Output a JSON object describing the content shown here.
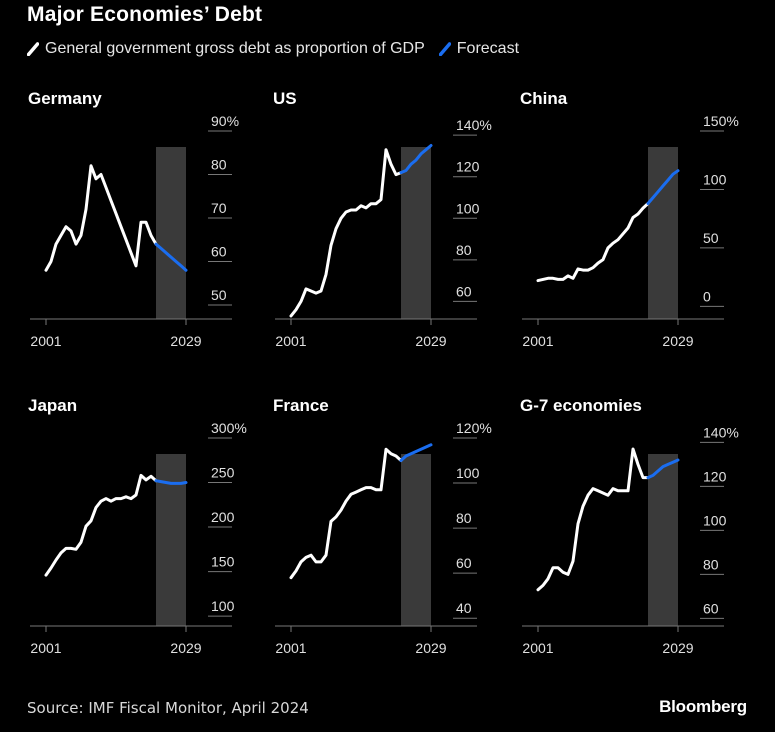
{
  "title": "Major Economies’ Debt",
  "legend": {
    "actual_label": "General government gross debt as proportion of GDP",
    "forecast_label": "Forecast"
  },
  "colors": {
    "actual": "#ffffff",
    "forecast": "#1a6df0",
    "forecast_band": "#3a3a3a",
    "grid": "#777777"
  },
  "source": "Source: IMF Fiscal Monitor, April 2024",
  "brand": "Bloomberg",
  "chart_data": [
    {
      "type": "line",
      "title": "Germany",
      "xlim": [
        2001,
        2029
      ],
      "ylim": [
        47,
        90
      ],
      "yticks": [
        50,
        60,
        70,
        80,
        90
      ],
      "ytick_labels": [
        "50",
        "60",
        "70",
        "80",
        "90%"
      ],
      "xtick_labels": [
        "2001",
        "2029"
      ],
      "forecast_start": 2023,
      "series": [
        {
          "x": [
            2001,
            2002,
            2003,
            2004,
            2005,
            2006,
            2007,
            2008,
            2009,
            2010,
            2011,
            2012,
            2013,
            2014,
            2015,
            2016,
            2017,
            2018,
            2019,
            2020,
            2021,
            2022,
            2023
          ],
          "values": [
            58,
            60,
            64,
            66,
            68,
            67,
            64,
            66,
            72,
            82,
            79,
            80,
            77,
            74,
            71,
            68,
            65,
            62,
            59,
            69,
            69,
            66,
            64
          ]
        },
        {
          "x": [
            2023,
            2024,
            2025,
            2026,
            2027,
            2028,
            2029
          ],
          "values": [
            64,
            63,
            62,
            61,
            60,
            59,
            58
          ]
        }
      ]
    },
    {
      "type": "line",
      "title": "US",
      "xlim": [
        2001,
        2029
      ],
      "ylim": [
        52,
        142
      ],
      "yticks": [
        60,
        80,
        100,
        120,
        140
      ],
      "ytick_labels": [
        "60",
        "80",
        "100",
        "120",
        "140%"
      ],
      "xtick_labels": [
        "2001",
        "2029"
      ],
      "forecast_start": 2023,
      "series": [
        {
          "x": [
            2001,
            2002,
            2003,
            2004,
            2005,
            2006,
            2007,
            2008,
            2009,
            2010,
            2011,
            2012,
            2013,
            2014,
            2015,
            2016,
            2017,
            2018,
            2019,
            2020,
            2021,
            2022,
            2023
          ],
          "values": [
            53,
            56,
            60,
            66,
            65,
            64,
            65,
            73,
            87,
            95,
            100,
            103,
            104,
            104,
            106,
            105,
            107,
            107,
            109,
            133,
            126,
            121,
            122
          ]
        },
        {
          "x": [
            2023,
            2024,
            2025,
            2026,
            2027,
            2028,
            2029
          ],
          "values": [
            122,
            123,
            126,
            128,
            131,
            133,
            135
          ]
        }
      ]
    },
    {
      "type": "line",
      "title": "China",
      "xlim": [
        2001,
        2029
      ],
      "ylim": [
        -10,
        150
      ],
      "yticks": [
        0,
        50,
        100,
        150
      ],
      "ytick_labels": [
        "0",
        "50",
        "100",
        "150%"
      ],
      "xtick_labels": [
        "2001",
        "2029"
      ],
      "forecast_start": 2023,
      "series": [
        {
          "x": [
            2001,
            2002,
            2003,
            2004,
            2005,
            2006,
            2007,
            2008,
            2009,
            2010,
            2011,
            2012,
            2013,
            2014,
            2015,
            2016,
            2017,
            2018,
            2019,
            2020,
            2021,
            2022,
            2023
          ],
          "values": [
            22,
            23,
            24,
            24,
            23,
            23,
            26,
            24,
            32,
            31,
            31,
            33,
            37,
            40,
            50,
            54,
            57,
            62,
            67,
            76,
            79,
            84,
            88
          ]
        },
        {
          "x": [
            2023,
            2024,
            2025,
            2026,
            2027,
            2028,
            2029
          ],
          "values": [
            88,
            93,
            98,
            103,
            108,
            113,
            116
          ]
        }
      ]
    },
    {
      "type": "line",
      "title": "Japan",
      "xlim": [
        2001,
        2029
      ],
      "ylim": [
        90,
        300
      ],
      "yticks": [
        100,
        150,
        200,
        250,
        300
      ],
      "ytick_labels": [
        "100",
        "150",
        "200",
        "250",
        "300%"
      ],
      "xtick_labels": [
        "2001",
        "2029"
      ],
      "forecast_start": 2023,
      "series": [
        {
          "x": [
            2001,
            2002,
            2003,
            2004,
            2005,
            2006,
            2007,
            2008,
            2009,
            2010,
            2011,
            2012,
            2013,
            2014,
            2015,
            2016,
            2017,
            2018,
            2019,
            2020,
            2021,
            2022,
            2023
          ],
          "values": [
            146,
            154,
            163,
            171,
            176,
            176,
            175,
            183,
            201,
            207,
            222,
            229,
            232,
            229,
            232,
            232,
            234,
            232,
            236,
            258,
            253,
            257,
            252
          ]
        },
        {
          "x": [
            2023,
            2024,
            2025,
            2026,
            2027,
            2028,
            2029
          ],
          "values": [
            252,
            251,
            250,
            249,
            249,
            249,
            250
          ]
        }
      ]
    },
    {
      "type": "line",
      "title": "France",
      "xlim": [
        2001,
        2029
      ],
      "ylim": [
        37,
        120
      ],
      "yticks": [
        40,
        60,
        80,
        100,
        120
      ],
      "ytick_labels": [
        "40",
        "60",
        "80",
        "100",
        "120%"
      ],
      "xtick_labels": [
        "2001",
        "2029"
      ],
      "forecast_start": 2023,
      "series": [
        {
          "x": [
            2001,
            2002,
            2003,
            2004,
            2005,
            2006,
            2007,
            2008,
            2009,
            2010,
            2011,
            2012,
            2013,
            2014,
            2015,
            2016,
            2017,
            2018,
            2019,
            2020,
            2021,
            2022,
            2023
          ],
          "values": [
            58,
            61,
            65,
            67,
            68,
            65,
            65,
            68,
            83,
            85,
            88,
            92,
            95,
            96,
            97,
            98,
            98,
            97,
            97,
            115,
            113,
            112,
            110
          ]
        },
        {
          "x": [
            2023,
            2024,
            2025,
            2026,
            2027,
            2028,
            2029
          ],
          "values": [
            110,
            112,
            113,
            114,
            115,
            116,
            117
          ]
        }
      ]
    },
    {
      "type": "line",
      "title": "G-7 economies",
      "xlim": [
        2001,
        2029
      ],
      "ylim": [
        57,
        142
      ],
      "yticks": [
        60,
        80,
        100,
        120,
        140
      ],
      "ytick_labels": [
        "60",
        "80",
        "100",
        "120",
        "140%"
      ],
      "xtick_labels": [
        "2001",
        "2029"
      ],
      "forecast_start": 2023,
      "series": [
        {
          "x": [
            2001,
            2002,
            2003,
            2004,
            2005,
            2006,
            2007,
            2008,
            2009,
            2010,
            2011,
            2012,
            2013,
            2014,
            2015,
            2016,
            2017,
            2018,
            2019,
            2020,
            2021,
            2022,
            2023
          ],
          "values": [
            73,
            75,
            78,
            83,
            83,
            81,
            80,
            86,
            103,
            111,
            116,
            119,
            118,
            117,
            116,
            119,
            118,
            118,
            118,
            137,
            130,
            124,
            124
          ]
        },
        {
          "x": [
            2023,
            2024,
            2025,
            2026,
            2027,
            2028,
            2029
          ],
          "values": [
            124,
            125,
            127,
            129,
            130,
            131,
            132
          ]
        }
      ]
    }
  ]
}
